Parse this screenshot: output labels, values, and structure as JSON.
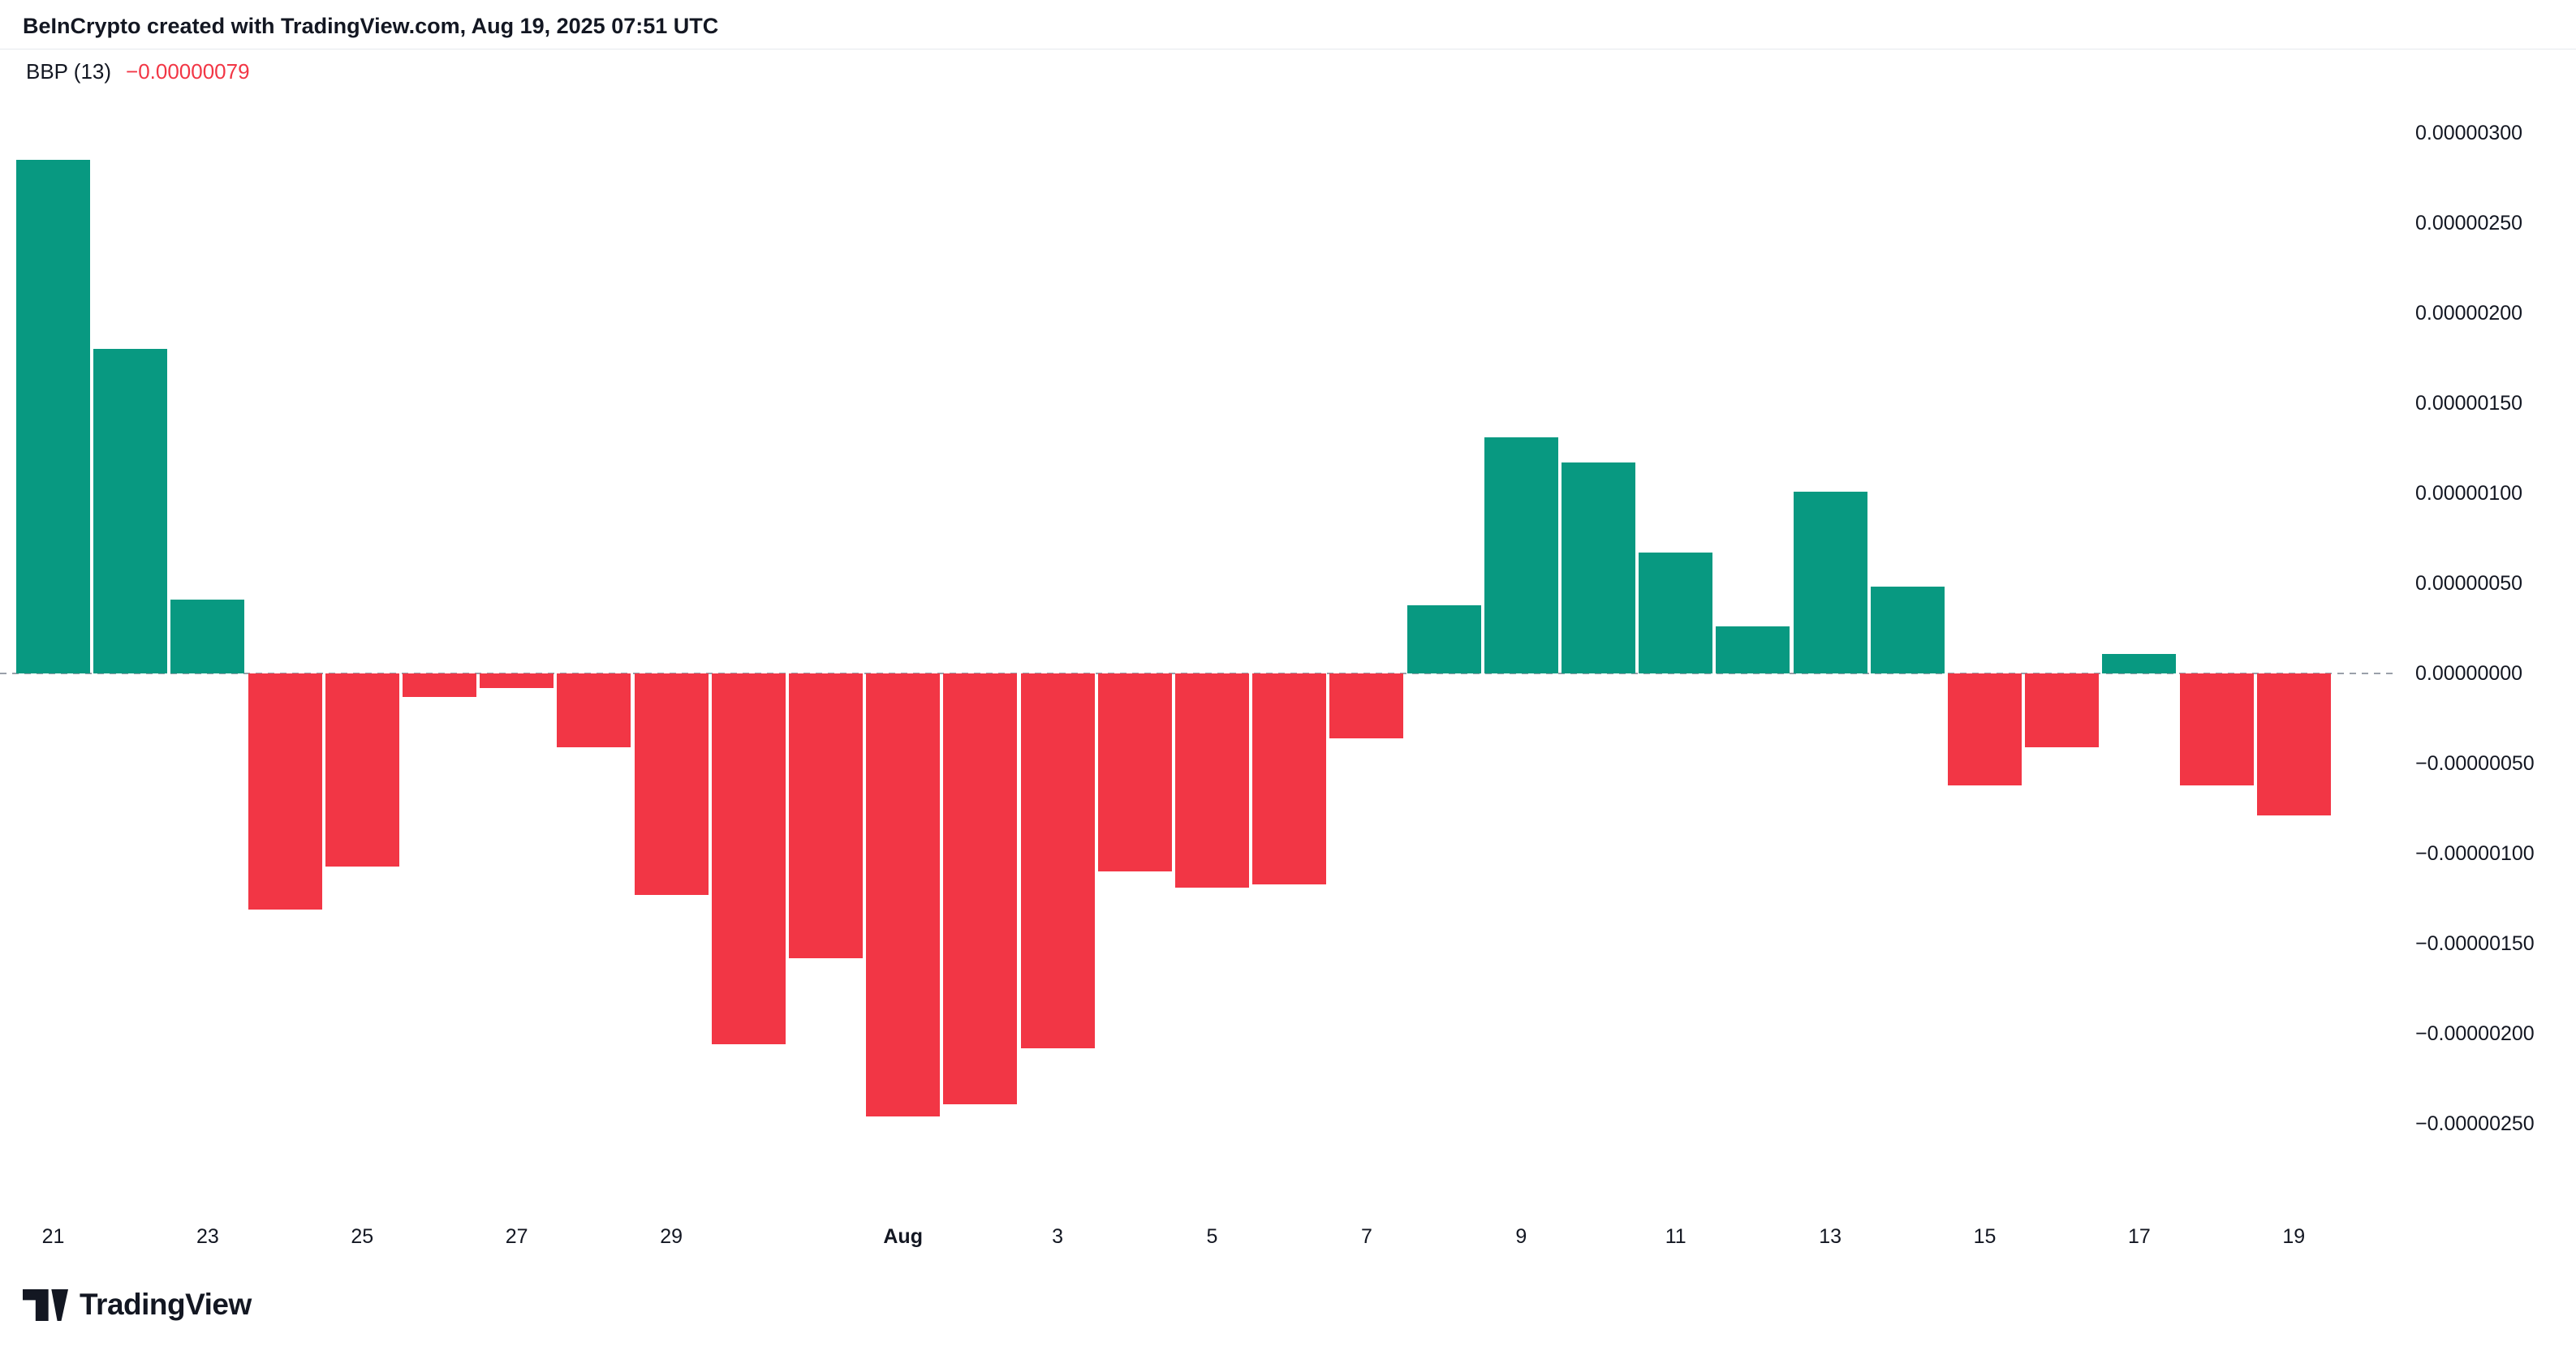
{
  "header": {
    "attribution": "BeInCrypto created with TradingView.com, Aug 19, 2025 07:51 UTC"
  },
  "indicator": {
    "name": "BBP (13)",
    "value": "−0.00000079"
  },
  "footer": {
    "brand": "TradingView"
  },
  "colors": {
    "positive": "#089981",
    "negative": "#F23645",
    "text": "#131722",
    "zero_line": "#9aa0aa",
    "background": "#ffffff"
  },
  "chart_data": {
    "type": "bar",
    "title": "BBP (13) Bull Bear Power histogram",
    "xlabel": "",
    "ylabel": "",
    "grid": false,
    "zero_line_style": "dashed",
    "legend_position": "top-left-overlay",
    "axis_position": "right",
    "positive_color": "#089981",
    "negative_color": "#F23645",
    "ylim": [
      -2.9e-06,
      3.5e-06
    ],
    "x": [
      "Jul 21",
      "Jul 22",
      "Jul 23",
      "Jul 24",
      "Jul 25",
      "Jul 26",
      "Jul 27",
      "Jul 28",
      "Jul 29",
      "Jul 30",
      "Jul 31",
      "Aug 1",
      "Aug 2",
      "Aug 3",
      "Aug 4",
      "Aug 5",
      "Aug 6",
      "Aug 7",
      "Aug 8",
      "Aug 9",
      "Aug 10",
      "Aug 11",
      "Aug 12",
      "Aug 13",
      "Aug 14",
      "Aug 15",
      "Aug 16",
      "Aug 17",
      "Aug 18",
      "Aug 19"
    ],
    "values": [
      2.85e-06,
      1.8e-06,
      4.1e-07,
      -1.31e-06,
      -1.07e-06,
      -1.3e-07,
      -8e-08,
      -4.1e-07,
      -1.23e-06,
      -2.06e-06,
      -1.58e-06,
      -2.46e-06,
      -2.39e-06,
      -2.08e-06,
      -1.1e-06,
      -1.19e-06,
      -1.17e-06,
      -3.6e-07,
      3.8e-07,
      1.31e-06,
      1.17e-06,
      6.7e-07,
      2.6e-07,
      1.01e-06,
      4.8e-07,
      -6.2e-07,
      -4.1e-07,
      1.1e-07,
      -6.2e-07,
      -7.9e-07
    ],
    "y_ticks": [
      {
        "label": "0.00000300",
        "value": 3e-06
      },
      {
        "label": "0.00000250",
        "value": 2.5e-06
      },
      {
        "label": "0.00000200",
        "value": 2e-06
      },
      {
        "label": "0.00000150",
        "value": 1.5e-06
      },
      {
        "label": "0.00000100",
        "value": 1e-06
      },
      {
        "label": "0.00000050",
        "value": 5e-07
      },
      {
        "label": "0.00000000",
        "value": 0.0
      },
      {
        "label": "−0.00000050",
        "value": -5e-07
      },
      {
        "label": "−0.00000100",
        "value": -1e-06
      },
      {
        "label": "−0.00000150",
        "value": -1.5e-06
      },
      {
        "label": "−0.00000200",
        "value": -2e-06
      },
      {
        "label": "−0.00000250",
        "value": -2.5e-06
      }
    ],
    "x_ticks": [
      {
        "label": "21",
        "index": 0,
        "bold": false
      },
      {
        "label": "23",
        "index": 2,
        "bold": false
      },
      {
        "label": "25",
        "index": 4,
        "bold": false
      },
      {
        "label": "27",
        "index": 6,
        "bold": false
      },
      {
        "label": "29",
        "index": 8,
        "bold": false
      },
      {
        "label": "Aug",
        "index": 11,
        "bold": true
      },
      {
        "label": "3",
        "index": 13,
        "bold": false
      },
      {
        "label": "5",
        "index": 15,
        "bold": false
      },
      {
        "label": "7",
        "index": 17,
        "bold": false
      },
      {
        "label": "9",
        "index": 19,
        "bold": false
      },
      {
        "label": "11",
        "index": 21,
        "bold": false
      },
      {
        "label": "13",
        "index": 23,
        "bold": false
      },
      {
        "label": "15",
        "index": 25,
        "bold": false
      },
      {
        "label": "17",
        "index": 27,
        "bold": false
      },
      {
        "label": "19",
        "index": 29,
        "bold": false
      }
    ]
  }
}
